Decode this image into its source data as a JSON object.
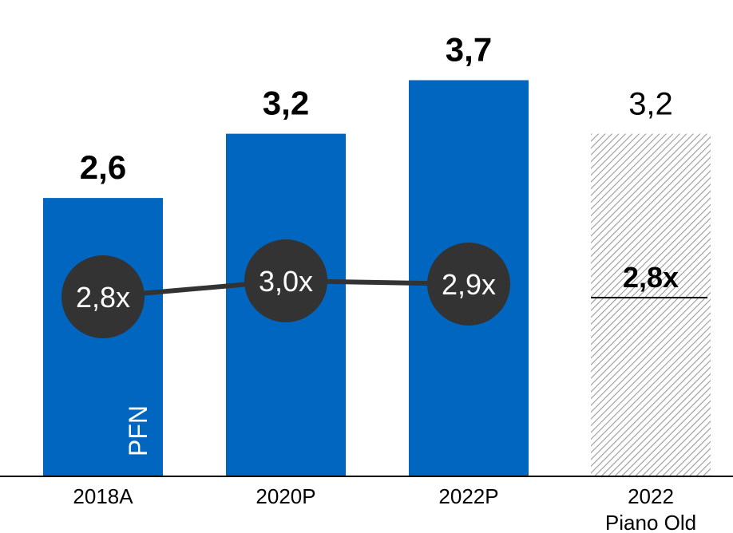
{
  "chart_data": {
    "type": "bar",
    "categories": [
      "2018A",
      "2020P",
      "2022P",
      "2022"
    ],
    "category_sublabels": [
      "",
      "",
      "",
      "Piano Old"
    ],
    "values": [
      2.6,
      3.2,
      3.7,
      3.2
    ],
    "value_labels": [
      "2,6",
      "3,2",
      "3,7",
      "3,2"
    ],
    "bar_styles": [
      "solid",
      "solid",
      "solid",
      "hatched"
    ],
    "ylim": [
      0,
      4.3
    ],
    "grid": false,
    "bar_annotation": "PFN",
    "multiples": {
      "type": "line",
      "values": [
        2.8,
        3.0,
        2.9
      ],
      "labels": [
        "2,8x",
        "3,0x",
        "2,9x"
      ]
    },
    "reference": {
      "value": 2.8,
      "label": "2,8x"
    }
  },
  "colors": {
    "bar": "#0066bf",
    "marker": "#333333",
    "hatch": "#9a9a9a",
    "axis": "#000000"
  }
}
